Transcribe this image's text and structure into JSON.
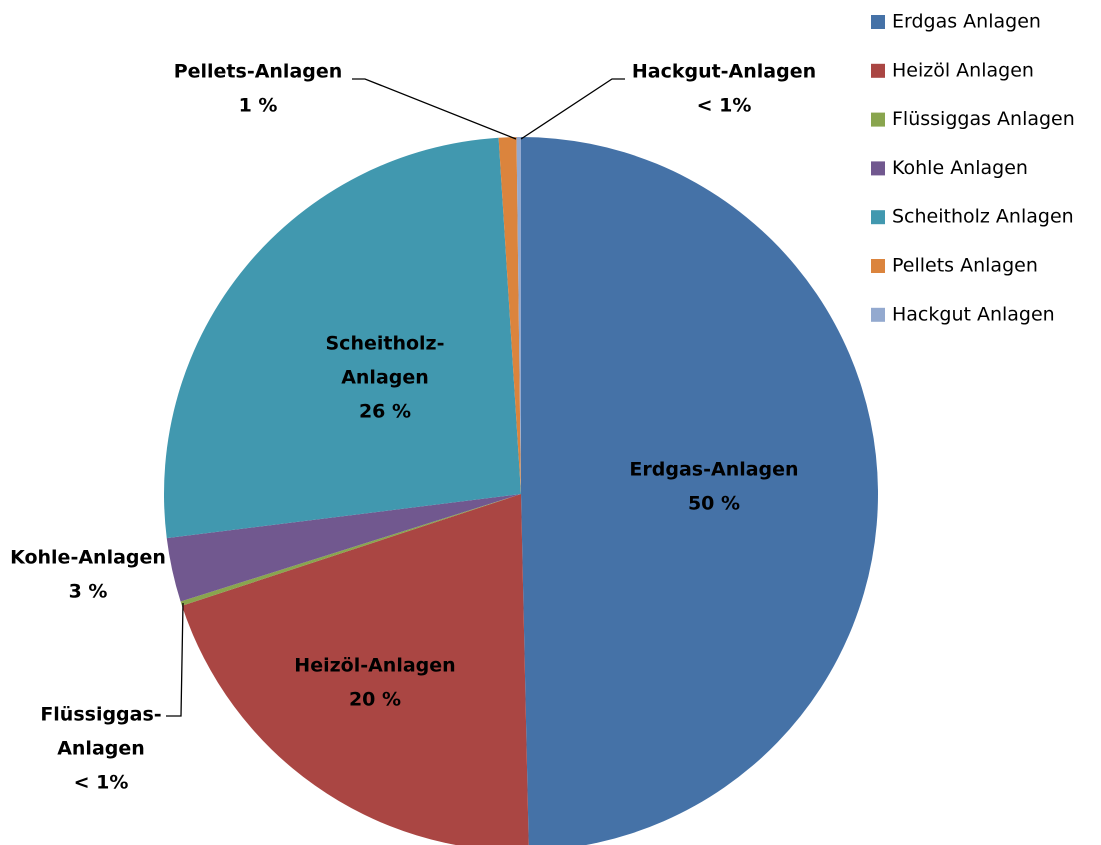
{
  "chart_data": {
    "type": "pie",
    "categories": [
      "Erdgas Anlagen",
      "Heizöl Anlagen",
      "Flüssiggas Anlagen",
      "Kohle Anlagen",
      "Scheitholz Anlagen",
      "Pellets Anlagen",
      "Hackgut Anlagen"
    ],
    "values": [
      49.7,
      20.3,
      0.2,
      2.9,
      26.0,
      0.8,
      0.2
    ],
    "value_labels": [
      "50 %",
      "20 %",
      "< 1%",
      "3 %",
      "26 %",
      "1 %",
      "< 1%"
    ],
    "slice_labels": [
      [
        "Erdgas-Anlagen"
      ],
      [
        "Heizöl-Anlagen"
      ],
      [
        "Flüssiggas-",
        "Anlagen"
      ],
      [
        "Kohle-Anlagen"
      ],
      [
        "Scheitholz-",
        "Anlagen"
      ],
      [
        "Pellets-Anlagen"
      ],
      [
        "Hackgut-Anlagen"
      ]
    ],
    "colors": [
      "#4572a7",
      "#aa4643",
      "#89a54e",
      "#71588f",
      "#4198af",
      "#db843d",
      "#93a9cf"
    ],
    "legend": "right"
  }
}
